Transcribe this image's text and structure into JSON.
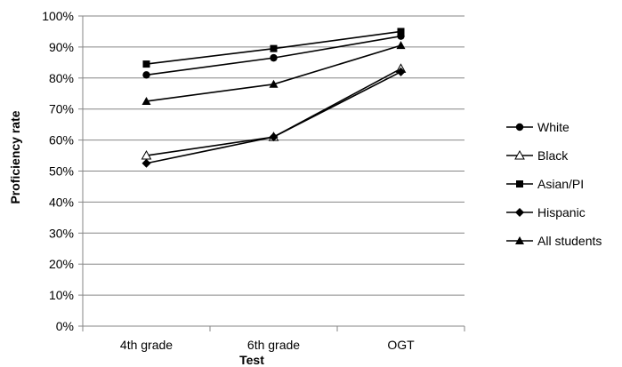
{
  "chart_data": {
    "type": "line",
    "categories": [
      "4th grade",
      "6th grade",
      "OGT"
    ],
    "xlabel": "Test",
    "ylabel": "Proficiency rate",
    "ylim": [
      0,
      100
    ],
    "ytick_step": 10,
    "y_tick_labels": [
      "0%",
      "10%",
      "20%",
      "30%",
      "40%",
      "50%",
      "60%",
      "70%",
      "80%",
      "90%",
      "100%"
    ],
    "grid": "horizontal",
    "legend_position": "right",
    "series": [
      {
        "name": "White",
        "marker": "circle",
        "values": [
          81,
          86.5,
          93.5
        ]
      },
      {
        "name": "Black",
        "marker": "triangle-open",
        "values": [
          55,
          61,
          83
        ]
      },
      {
        "name": "Asian/PI",
        "marker": "square",
        "values": [
          84.5,
          89.5,
          95
        ]
      },
      {
        "name": "Hispanic",
        "marker": "diamond",
        "values": [
          52.5,
          61,
          82
        ]
      },
      {
        "name": "All students",
        "marker": "triangle",
        "values": [
          72.5,
          78,
          90.5
        ]
      }
    ]
  }
}
